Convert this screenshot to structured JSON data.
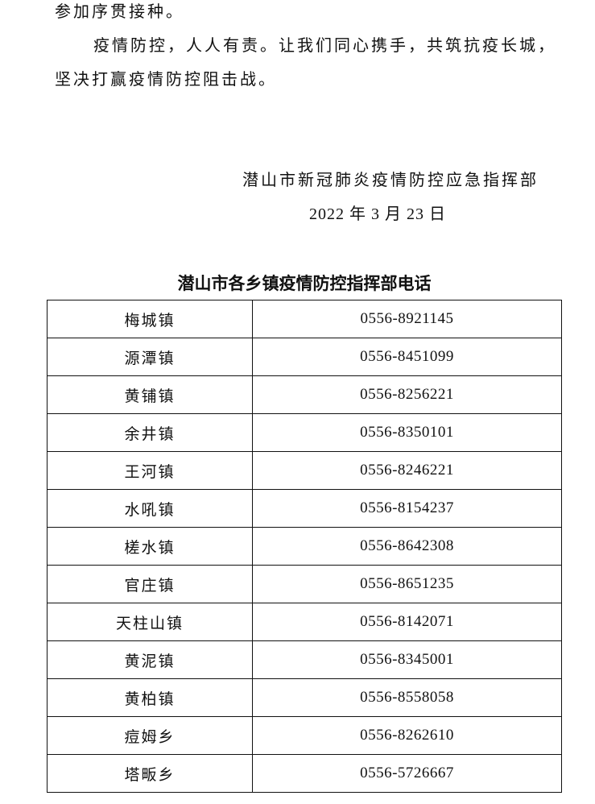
{
  "body": {
    "paragraph_lines": [
      "参加序贯接种。",
      "疫情防控，人人有责。让我们同心携手，共筑抗疫长城，",
      "坚决打赢疫情防控阻击战。"
    ],
    "signature": "潜山市新冠肺炎疫情防控应急指挥部",
    "date": "2022 年 3 月 23 日"
  },
  "table": {
    "title": "潜山市各乡镇疫情防控指挥部电话",
    "rows": [
      {
        "name": "梅城镇",
        "phone": "0556-8921145"
      },
      {
        "name": "源潭镇",
        "phone": "0556-8451099"
      },
      {
        "name": "黄铺镇",
        "phone": "0556-8256221"
      },
      {
        "name": "余井镇",
        "phone": "0556-8350101"
      },
      {
        "name": "王河镇",
        "phone": "0556-8246221"
      },
      {
        "name": "水吼镇",
        "phone": "0556-8154237"
      },
      {
        "name": "槎水镇",
        "phone": "0556-8642308"
      },
      {
        "name": "官庄镇",
        "phone": "0556-8651235"
      },
      {
        "name": "天柱山镇",
        "phone": "0556-8142071"
      },
      {
        "name": "黄泥镇",
        "phone": "0556-8345001"
      },
      {
        "name": "黄柏镇",
        "phone": "0556-8558058"
      },
      {
        "name": "痘姆乡",
        "phone": "0556-8262610"
      },
      {
        "name": "塔畈乡",
        "phone": "0556-5726667"
      }
    ]
  }
}
